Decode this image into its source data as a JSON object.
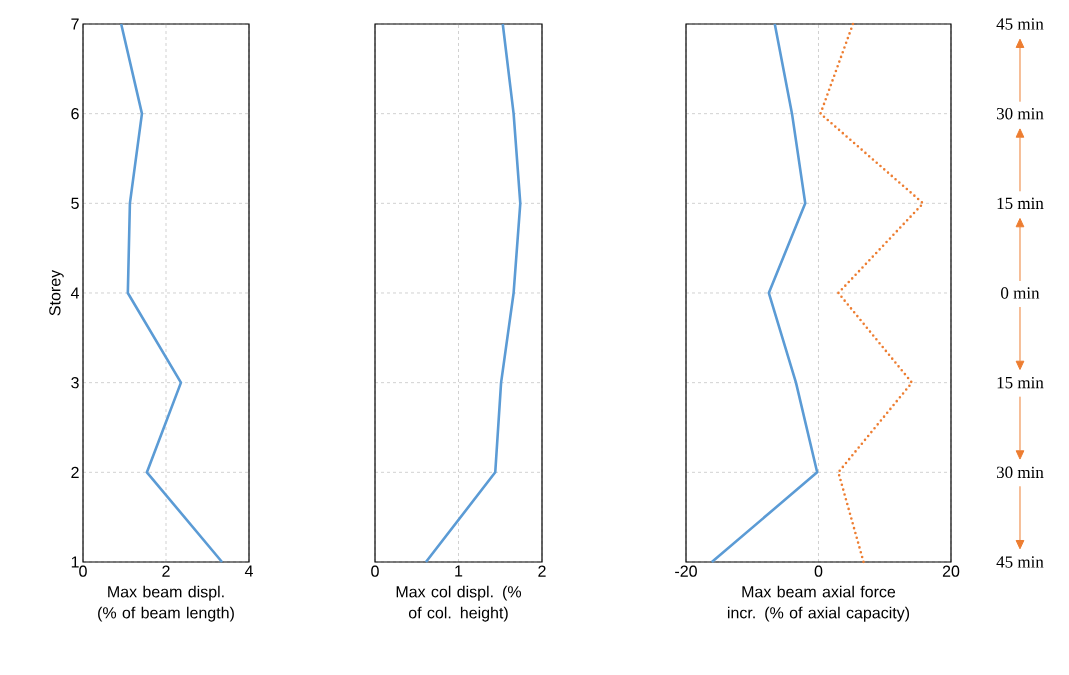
{
  "chart_data": [
    {
      "type": "line",
      "orientation": "horizontal",
      "categories": [
        "7",
        "6",
        "5",
        "4",
        "3",
        "2",
        "1"
      ],
      "values": [
        0.92,
        1.42,
        1.13,
        1.08,
        2.36,
        1.54,
        3.35
      ],
      "color": "#5b9bd5",
      "line_style": "solid",
      "marker": "none",
      "xlim": [
        0,
        4
      ],
      "xticks": [
        0,
        2,
        4
      ],
      "xlabel": "Max beam displ. (% of beam length)",
      "ylabel": "Storey",
      "grid": true
    },
    {
      "type": "line",
      "orientation": "horizontal",
      "categories": [
        "7",
        "6",
        "5",
        "4",
        "3",
        "2",
        "1"
      ],
      "values": [
        1.53,
        1.66,
        1.74,
        1.66,
        1.51,
        1.44,
        0.61
      ],
      "color": "#5b9bd5",
      "line_style": "solid",
      "marker": "none",
      "xlim": [
        0,
        2
      ],
      "xticks": [
        0,
        1,
        2
      ],
      "xlabel": "Max col displ. (% of col. height)",
      "grid": true,
      "tick_labels": "x"
    },
    {
      "type": "line",
      "orientation": "horizontal",
      "categories": [
        "7",
        "6",
        "5",
        "4",
        "3",
        "2",
        "1"
      ],
      "series": [
        {
          "color": "#5b9bd5",
          "line_style": "solid",
          "values": [
            -6.6,
            -4,
            -2,
            -7.5,
            -3.4,
            -0.2,
            -16.1
          ]
        },
        {
          "color": "#ed7d31",
          "line_style": "dotted",
          "values": [
            5.2,
            0.3,
            15.8,
            3.0,
            14.1,
            3.0,
            6.8
          ]
        }
      ],
      "marker": "none",
      "xlim": [
        -20,
        20
      ],
      "xticks": [
        -20,
        0,
        20
      ],
      "xlabel": "Max beam axial force incr. (% of axial capacity)",
      "grid": true,
      "tick_labels": "x",
      "annotations": [
        "45 min",
        "30 min",
        "15 min",
        "0 min",
        "15 min",
        "30 min",
        "45 min"
      ]
    }
  ]
}
